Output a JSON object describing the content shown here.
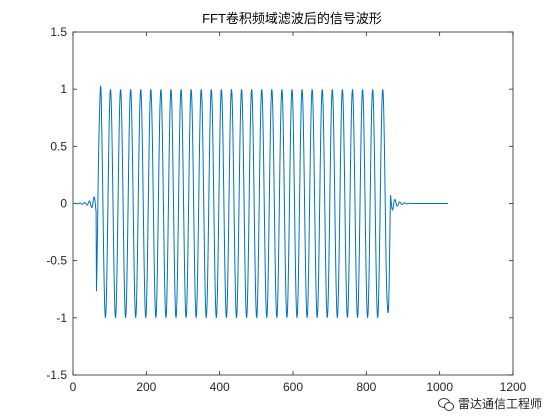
{
  "chart_data": {
    "type": "line",
    "title": "FFT卷积频域滤波后的信号波形",
    "xlabel": "",
    "ylabel": "",
    "xlim": [
      0,
      1200
    ],
    "ylim": [
      -1.5,
      1.5
    ],
    "x_ticks": [
      0,
      200,
      400,
      600,
      800,
      1000,
      1200
    ],
    "x_tick_labels": [
      "0",
      "200",
      "400",
      "600",
      "800",
      "1000",
      "1200"
    ],
    "y_ticks": [
      -1.5,
      -1,
      -0.5,
      0,
      0.5,
      1,
      1.5
    ],
    "y_tick_labels": [
      "-1.5",
      "-1",
      "-0.5",
      "0",
      "0.5",
      "1",
      "1.5"
    ],
    "grid": false,
    "series": [
      {
        "color": "#0072BD",
        "signal": {
          "samples": 1024,
          "pulse_start": 64,
          "pulse_end": 865,
          "amplitude": 1,
          "period_samples": 27.5,
          "phase_deg": -50,
          "ringing_period_samples": 13,
          "ringing_amplitude": 0.09
        }
      }
    ]
  },
  "watermark": {
    "icon": "wechat-icon",
    "text": "雷达通信工程师"
  }
}
